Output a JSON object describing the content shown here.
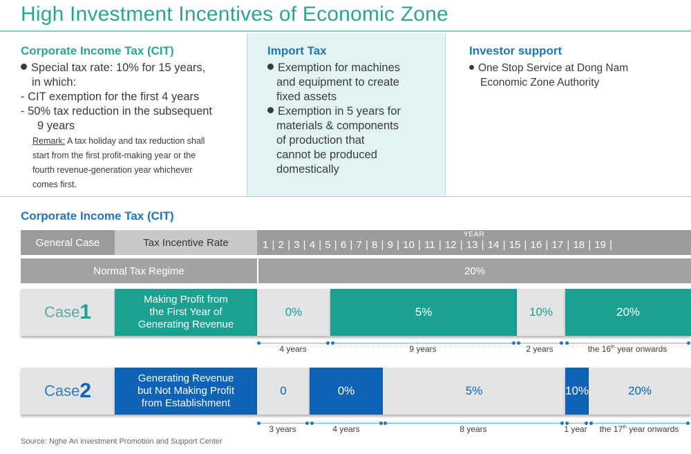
{
  "title": "High Investment Incentives of Economic Zone",
  "cit_section": {
    "heading": "Corporate Income Tax (CIT)",
    "line1": "Special tax rate: 10% for 15 years,",
    "line2": "in which:",
    "line3": "- CIT exemption for the first 4 years",
    "line4": "- 50% tax reduction in the subsequent",
    "line5": "9 years",
    "remark_label": "Remark:",
    "remark_1": "A tax holiday and tax reduction shall",
    "remark_2": "start from the first profit-making year or the",
    "remark_3": "fourth revenue-generation year whichever",
    "remark_4": "comes first."
  },
  "import_section": {
    "heading": "Import Tax",
    "b1_1": "Exemption for machines",
    "b1_2": "and equipment to create",
    "b1_3": "fixed assets",
    "b2_1": "Exemption in 5 years for",
    "b2_2": "materials & components",
    "b2_3": "of production that",
    "b2_4": "cannot be produced",
    "b2_5": "domestically"
  },
  "investor_section": {
    "heading": "Investor support",
    "b1_1": "One Stop Service at Dong Nam",
    "b1_2": "Economic Zone Authority"
  },
  "table": {
    "heading": "Corporate Income Tax (CIT)",
    "general_case": "General Case",
    "tax_incentive_rate": "Tax Incentive Rate",
    "year_label": "YEAR",
    "years_row": "1 | 2 | 3 | 4 | 5 | 6 | 7 | 8 | 9 | 10 | 11 | 12 | 13 | 14 | 15 | 16 | 17 | 18 | 19 |",
    "normal_regime": "Normal Tax Regime",
    "normal_rate": "20%",
    "case1": {
      "word": "Case",
      "num": "1",
      "desc_1": "Making Profit from",
      "desc_2": "the First Year of",
      "desc_3": "Generating Revenue",
      "seg_a": "0%",
      "seg_b": "5%",
      "seg_c": "10%",
      "seg_d": "20%",
      "lbl_a": "4 years",
      "lbl_b": "9 years",
      "lbl_c": "2 years",
      "lbl_d_pre": "the 16",
      "lbl_d_sup": "th",
      "lbl_d_post": " year onwards"
    },
    "case2": {
      "word": "Case",
      "num": "2",
      "desc_1": "Generating Revenue",
      "desc_2": "but Not Making Profit",
      "desc_3": "from Establishment",
      "seg_a": "0",
      "seg_b": "0%",
      "seg_c": "5%",
      "seg_d": "10%",
      "seg_e": "20%",
      "lbl_a": "3 years",
      "lbl_b": "4 years",
      "lbl_c": "8 years",
      "lbl_d": "1 year",
      "lbl_e_pre": "the 17",
      "lbl_e_sup": "th",
      "lbl_e_post": " year onwards"
    }
  },
  "source": "Source: Nghe An investment Promotion and Support Center",
  "colors": {
    "teal": "#1aa190",
    "blue": "#0f63b6",
    "title_teal": "#2aa594",
    "gray": "#9c9c9c"
  }
}
